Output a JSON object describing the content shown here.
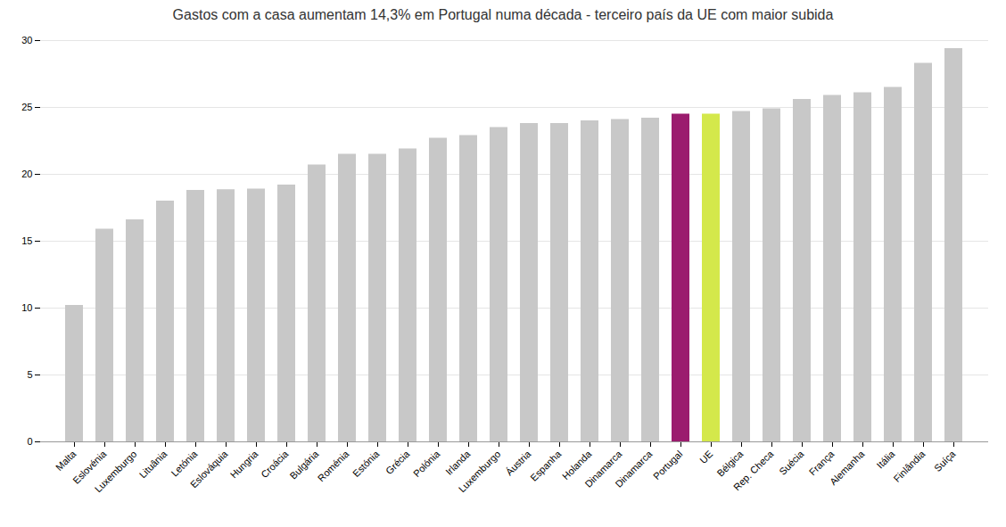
{
  "chart_data": {
    "type": "bar",
    "title": "Gastos com a casa aumentam 14,3% em Portugal numa década - terceiro país da UE com maior subida",
    "categories": [
      "Malta",
      "Eslovénia",
      "Luxemburgo",
      "Lituânia",
      "Letónia",
      "Eslováquia",
      "Hungria",
      "Croácia",
      "Bulgária",
      "Roménia",
      "Estónia",
      "Grécia",
      "Polónia",
      "Irlanda",
      "Luxemburgo",
      "Áustria",
      "Espanha",
      "Holanda",
      "Dinamarca",
      "Dinamarca",
      "Portugal",
      "UE",
      "Bélgica",
      "Rep. Checa",
      "Suécia",
      "França",
      "Alemanha",
      "Itália",
      "Finlândia",
      "Suíça"
    ],
    "values": [
      10.2,
      15.9,
      16.6,
      18.0,
      18.8,
      18.85,
      18.9,
      19.2,
      20.7,
      21.5,
      21.5,
      21.9,
      22.7,
      22.9,
      23.5,
      23.8,
      23.8,
      24.0,
      24.1,
      24.2,
      24.5,
      24.5,
      24.7,
      24.9,
      25.6,
      25.9,
      26.1,
      26.5,
      28.3,
      29.4
    ],
    "colors": [
      "#c8c8c8",
      "#c8c8c8",
      "#c8c8c8",
      "#c8c8c8",
      "#c8c8c8",
      "#c8c8c8",
      "#c8c8c8",
      "#c8c8c8",
      "#c8c8c8",
      "#c8c8c8",
      "#c8c8c8",
      "#c8c8c8",
      "#c8c8c8",
      "#c8c8c8",
      "#c8c8c8",
      "#c8c8c8",
      "#c8c8c8",
      "#c8c8c8",
      "#c8c8c8",
      "#c8c8c8",
      "#9b1c6e",
      "#d4e84b",
      "#c8c8c8",
      "#c8c8c8",
      "#c8c8c8",
      "#c8c8c8",
      "#c8c8c8",
      "#c8c8c8",
      "#c8c8c8",
      "#c8c8c8"
    ],
    "ylim": [
      0,
      30
    ],
    "yticks": [
      0,
      5,
      10,
      15,
      20,
      25,
      30
    ],
    "grid": true
  }
}
